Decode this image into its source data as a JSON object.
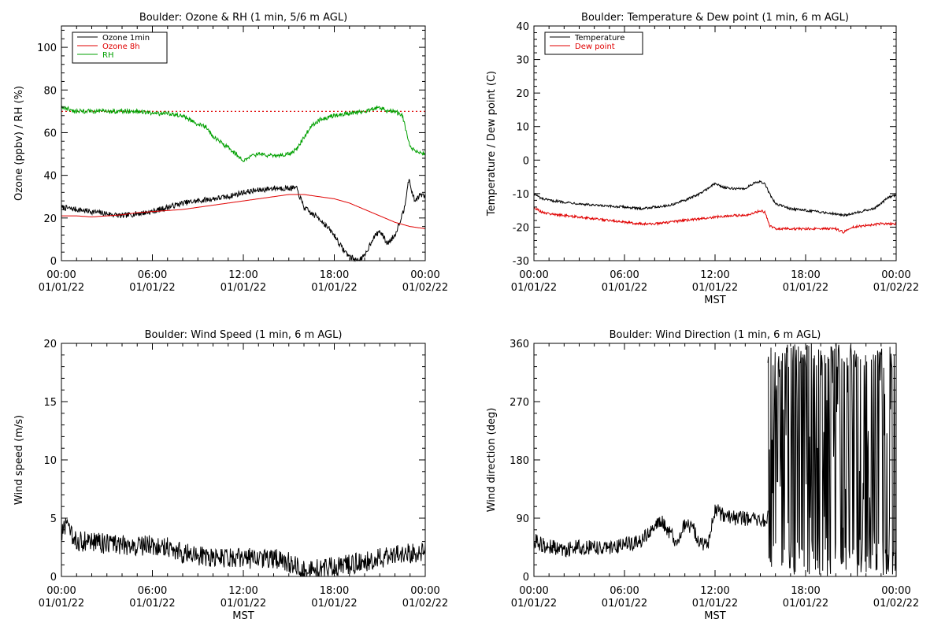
{
  "chart_data": [
    {
      "id": "ozone-rh",
      "type": "line",
      "title": "Boulder: Ozone & RH (1 min, 5/6 m AGL)",
      "ylabel": "Ozone (ppbv) / RH (%)",
      "xlabel": "",
      "xlim": [
        0,
        24
      ],
      "ylim": [
        0,
        110
      ],
      "yticks": [
        0,
        20,
        40,
        60,
        80,
        100
      ],
      "xticks": [
        0,
        6,
        12,
        18,
        24
      ],
      "xtick_labels": [
        [
          "00:00",
          "01/01/22"
        ],
        [
          "06:00",
          "01/01/22"
        ],
        [
          "12:00",
          "01/01/22"
        ],
        [
          "18:00",
          "01/01/22"
        ],
        [
          "00:00",
          "01/02/22"
        ]
      ],
      "legend_position": "top-left",
      "reference_line": {
        "y": 70,
        "color": "#e00000",
        "style": "dotted"
      },
      "series": [
        {
          "name": "Ozone 1min",
          "color": "#000000",
          "noise": 1.3,
          "x": [
            0,
            1,
            2,
            3,
            4,
            5,
            6,
            7,
            8,
            9,
            10,
            11,
            12,
            13,
            14,
            15,
            15.5,
            16,
            16.5,
            17,
            17.5,
            18,
            18.5,
            19,
            19.5,
            20,
            20.5,
            21,
            21.5,
            22,
            22.3,
            22.6,
            22.9,
            23.3,
            23.7,
            24
          ],
          "y": [
            25,
            24,
            23,
            22,
            21,
            22,
            23,
            25,
            27,
            28,
            29,
            30,
            32,
            33,
            34,
            34,
            34,
            25,
            22,
            20,
            16,
            12,
            6,
            2,
            0,
            2,
            10,
            14,
            8,
            12,
            18,
            24,
            38,
            28,
            31,
            30
          ]
        },
        {
          "name": "Ozone 8h",
          "color": "#e00000",
          "noise": 0,
          "x": [
            0,
            1,
            2,
            3,
            4,
            5,
            6,
            7,
            8,
            9,
            10,
            11,
            12,
            13,
            14,
            15,
            16,
            17,
            18,
            19,
            20,
            21,
            22,
            23,
            24
          ],
          "y": [
            21,
            21,
            20.5,
            21,
            21.5,
            22.5,
            23,
            23.5,
            24,
            25,
            26,
            27,
            28,
            29,
            30,
            31,
            31,
            30,
            29,
            27,
            24,
            21,
            18,
            16,
            15
          ]
        },
        {
          "name": "RH",
          "color": "#00a000",
          "noise": 1.0,
          "x": [
            0,
            1,
            2,
            3,
            4,
            5,
            6,
            7,
            8,
            9,
            9.5,
            10,
            11,
            12,
            12.5,
            13,
            14,
            15,
            15.5,
            16,
            16.5,
            17,
            18,
            19,
            20,
            21,
            21.5,
            22,
            22.5,
            23,
            23.5,
            24
          ],
          "y": [
            72,
            70,
            70,
            70,
            70,
            70,
            69,
            69,
            68,
            64,
            63,
            58,
            53,
            47,
            49,
            50,
            49,
            50,
            52,
            58,
            63,
            66,
            68,
            69,
            70,
            72,
            70,
            70,
            68,
            53,
            51,
            50
          ]
        }
      ]
    },
    {
      "id": "temp-dew",
      "type": "line",
      "title": "Boulder: Temperature & Dew point (1 min, 6 m AGL)",
      "ylabel": "Temperature / Dew point (C)",
      "xlabel": "MST",
      "xlim": [
        0,
        24
      ],
      "ylim": [
        -30,
        40
      ],
      "yticks": [
        -30,
        -20,
        -10,
        0,
        10,
        20,
        30,
        40
      ],
      "xticks": [
        0,
        6,
        12,
        18,
        24
      ],
      "xtick_labels": [
        [
          "00:00",
          "01/01/22"
        ],
        [
          "06:00",
          "01/01/22"
        ],
        [
          "12:00",
          "01/01/22"
        ],
        [
          "18:00",
          "01/01/22"
        ],
        [
          "00:00",
          "01/02/22"
        ]
      ],
      "legend_position": "top-left",
      "series": [
        {
          "name": "Temperature",
          "color": "#000000",
          "noise": 0.35,
          "x": [
            0,
            0.5,
            1,
            2,
            3,
            4,
            5,
            6,
            7,
            8,
            9,
            10,
            11,
            11.5,
            12,
            12.5,
            13,
            14,
            14.5,
            15,
            15.3,
            15.6,
            16,
            17,
            18,
            19,
            20,
            20.5,
            21,
            22,
            22.5,
            23,
            23.5,
            24
          ],
          "y": [
            -10,
            -11.5,
            -12,
            -12.5,
            -13,
            -13.5,
            -13.8,
            -14,
            -14.5,
            -14,
            -13.5,
            -12,
            -10,
            -8.5,
            -7,
            -8,
            -8.5,
            -8.5,
            -7,
            -6.5,
            -7,
            -10,
            -13,
            -14.5,
            -15,
            -15.5,
            -16,
            -16.5,
            -16,
            -15,
            -14.5,
            -13,
            -11,
            -10.5
          ]
        },
        {
          "name": "Dew point",
          "color": "#e00000",
          "noise": 0.35,
          "x": [
            0,
            0.5,
            1,
            2,
            3,
            4,
            5,
            6,
            7,
            8,
            9,
            10,
            11,
            12,
            13,
            14,
            14.5,
            15,
            15.3,
            15.6,
            16,
            17,
            18,
            19,
            20,
            20.5,
            21,
            22,
            23,
            24
          ],
          "y": [
            -14,
            -15.5,
            -16,
            -16.5,
            -17,
            -17.5,
            -18,
            -18.5,
            -19,
            -19,
            -18.5,
            -18,
            -17.5,
            -17,
            -16.5,
            -16.5,
            -16,
            -15,
            -15.5,
            -19.5,
            -20.5,
            -20.5,
            -20.5,
            -20.5,
            -20.5,
            -21.5,
            -20,
            -19.5,
            -19,
            -19
          ]
        }
      ]
    },
    {
      "id": "wind-speed",
      "type": "line",
      "title": "Boulder: Wind Speed (1 min, 6 m AGL)",
      "ylabel": "Wind speed (m/s)",
      "xlabel": "MST",
      "xlim": [
        0,
        24
      ],
      "ylim": [
        0,
        20
      ],
      "yticks": [
        0,
        5,
        10,
        15,
        20
      ],
      "xticks": [
        0,
        6,
        12,
        18,
        24
      ],
      "xtick_labels": [
        [
          "00:00",
          "01/01/22"
        ],
        [
          "06:00",
          "01/01/22"
        ],
        [
          "12:00",
          "01/01/22"
        ],
        [
          "18:00",
          "01/01/22"
        ],
        [
          "00:00",
          "01/02/22"
        ]
      ],
      "series": [
        {
          "name": "",
          "color": "#000000",
          "noise": 0.9,
          "x": [
            0,
            0.3,
            0.6,
            1,
            2,
            3,
            4,
            5,
            6,
            7,
            8,
            9,
            10,
            11,
            12,
            13,
            14,
            15,
            15.5,
            16,
            17,
            18,
            19,
            20,
            21,
            22,
            23,
            24
          ],
          "y": [
            3.5,
            4.5,
            3.5,
            3,
            3,
            2.8,
            2.7,
            2.6,
            2.7,
            2.6,
            2,
            1.8,
            1.7,
            1.5,
            1.6,
            1.5,
            1.5,
            1.2,
            0.8,
            0.5,
            0.6,
            0.8,
            1,
            1.3,
            1.6,
            1.8,
            2,
            2
          ]
        }
      ]
    },
    {
      "id": "wind-dir",
      "type": "line",
      "title": "Boulder: Wind Direction (1 min, 6 m AGL)",
      "ylabel": "Wind direction (deg)",
      "xlabel": "MST",
      "xlim": [
        0,
        24
      ],
      "ylim": [
        0,
        360
      ],
      "yticks": [
        0,
        90,
        180,
        270,
        360
      ],
      "xticks": [
        0,
        6,
        12,
        18,
        24
      ],
      "xtick_labels": [
        [
          "00:00",
          "01/01/22"
        ],
        [
          "06:00",
          "01/01/22"
        ],
        [
          "12:00",
          "01/01/22"
        ],
        [
          "18:00",
          "01/01/22"
        ],
        [
          "00:00",
          "01/02/22"
        ]
      ],
      "series": [
        {
          "name": "",
          "color": "#000000",
          "noise": 12,
          "x": [
            0,
            1,
            2,
            3,
            4,
            5,
            6,
            7,
            7.5,
            8,
            8.5,
            9,
            9.5,
            10,
            10.5,
            11,
            11.5,
            12,
            12.5,
            13,
            14,
            15,
            15.5
          ],
          "y": [
            55,
            45,
            42,
            45,
            45,
            45,
            48,
            55,
            65,
            80,
            85,
            65,
            55,
            80,
            75,
            55,
            45,
            105,
            95,
            90,
            90,
            85,
            90
          ]
        },
        {
          "name": "",
          "color": "#000000",
          "noise": 0,
          "wild": true,
          "x": [
            15.5,
            24
          ],
          "y": [
            0,
            360
          ]
        }
      ]
    }
  ]
}
